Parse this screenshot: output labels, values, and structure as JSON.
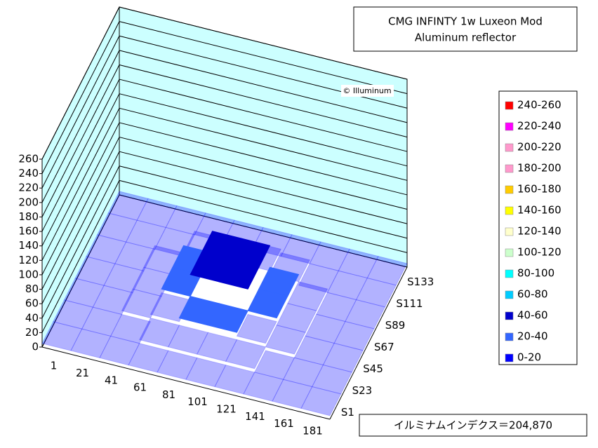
{
  "chart_data": {
    "type": "surface3d",
    "title": [
      "CMG INFINTY 1w Luxeon Mod",
      "Aluminum reflector"
    ],
    "watermark": "© Illuminum",
    "annotation": "イルミナムインデクス＝204,870",
    "categories": [
      "1",
      "21",
      "41",
      "61",
      "81",
      "101",
      "121",
      "141",
      "161",
      "181"
    ],
    "series_names": [
      "S1",
      "S23",
      "S45",
      "S67",
      "S89",
      "S111",
      "S133"
    ],
    "values": [
      [
        5,
        5,
        5,
        5,
        5,
        5,
        5,
        5,
        5,
        5
      ],
      [
        5,
        5,
        5,
        10,
        10,
        10,
        10,
        5,
        5,
        5
      ],
      [
        5,
        5,
        10,
        15,
        20,
        20,
        15,
        10,
        5,
        5
      ],
      [
        5,
        5,
        10,
        20,
        50,
        50,
        20,
        10,
        5,
        5
      ],
      [
        5,
        5,
        10,
        20,
        50,
        50,
        20,
        10,
        5,
        5
      ],
      [
        5,
        5,
        5,
        10,
        15,
        15,
        10,
        5,
        5,
        5
      ],
      [
        5,
        5,
        5,
        5,
        5,
        5,
        5,
        5,
        5,
        5
      ]
    ],
    "zlim": [
      0,
      260
    ],
    "zticks": [
      0,
      20,
      40,
      60,
      80,
      100,
      120,
      140,
      160,
      180,
      200,
      220,
      240,
      260
    ],
    "wall_color": "#ccffff",
    "legend": [
      {
        "label": "240-260",
        "color": "#ff0000"
      },
      {
        "label": "220-240",
        "color": "#ff00ff"
      },
      {
        "label": "200-220",
        "color": "#ff99cc"
      },
      {
        "label": "180-200",
        "color": "#ff99cc"
      },
      {
        "label": "160-180",
        "color": "#ffcc00"
      },
      {
        "label": "140-160",
        "color": "#ffff00"
      },
      {
        "label": "120-140",
        "color": "#ffffcc"
      },
      {
        "label": "100-120",
        "color": "#ccffcc"
      },
      {
        "label": "80-100",
        "color": "#00ffff"
      },
      {
        "label": "60-80",
        "color": "#00ccff"
      },
      {
        "label": "40-60",
        "color": "#0000cc"
      },
      {
        "label": "20-40",
        "color": "#3366ff"
      },
      {
        "label": "0-20",
        "color": "#0000ff"
      }
    ]
  }
}
